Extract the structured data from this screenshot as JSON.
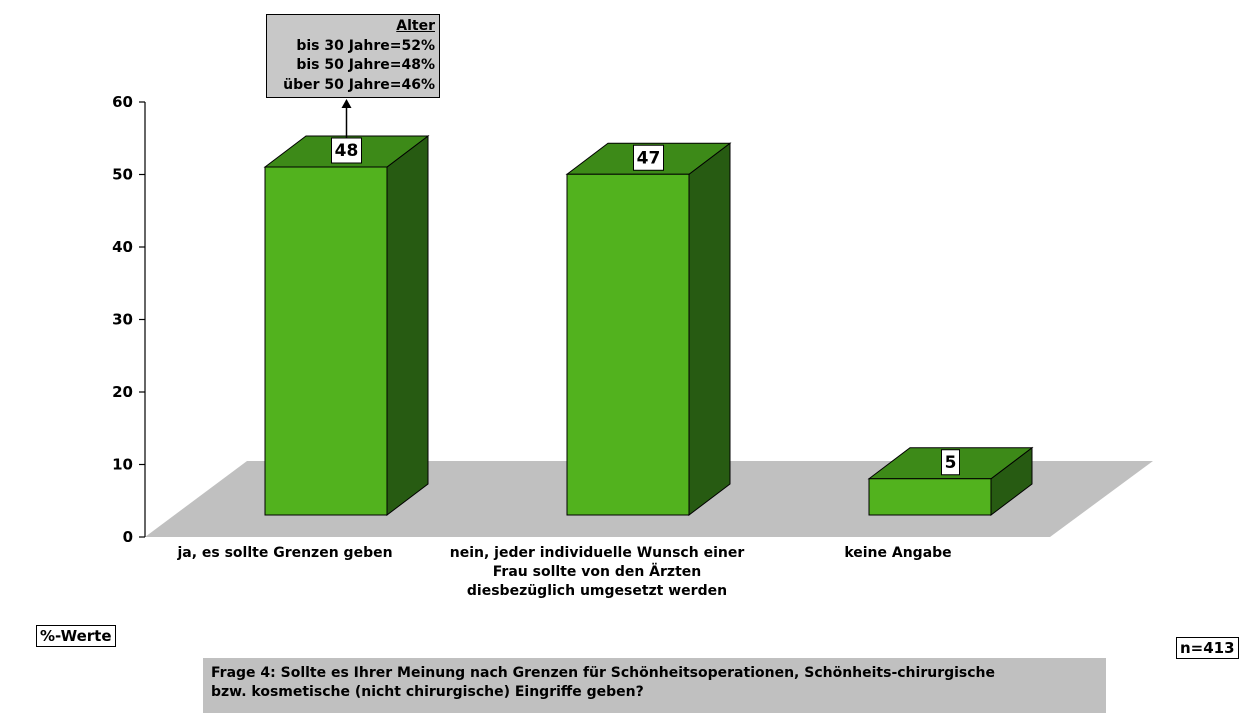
{
  "chart_data": {
    "type": "bar",
    "categories": [
      [
        "ja, es sollte Grenzen geben"
      ],
      [
        "nein, jeder individuelle Wunsch einer",
        "Frau sollte von den Ärzten",
        "diesbezüglich umgesetzt werden"
      ],
      [
        "keine Angabe"
      ]
    ],
    "values": [
      48,
      47,
      5
    ],
    "data_labels": [
      "48",
      "47",
      "5"
    ],
    "ylim": [
      0,
      60
    ],
    "yticks": [
      "0",
      "10",
      "20",
      "30",
      "40",
      "50",
      "60"
    ],
    "three_d": true,
    "grid": false,
    "legend": "none",
    "colors": {
      "bar_front": "#52b21e",
      "bar_top": "#3d8a18",
      "bar_side": "#275b12",
      "floor": "#c0c0c0",
      "annotation_bg": "#c8c8c8"
    }
  },
  "annotation": {
    "title": "Alter",
    "lines": [
      "bis 30 Jahre=52%",
      "bis 50 Jahre=48%",
      "über 50 Jahre=46%"
    ]
  },
  "unit_label": "%-Werte",
  "sample_size": "n=413",
  "question": {
    "line1": "Frage 4: Sollte es Ihrer Meinung nach Grenzen für Schönheitsoperationen, Schönheits-chirurgische",
    "line2": "bzw. kosmetische (nicht chirurgische) Eingriffe geben?"
  }
}
